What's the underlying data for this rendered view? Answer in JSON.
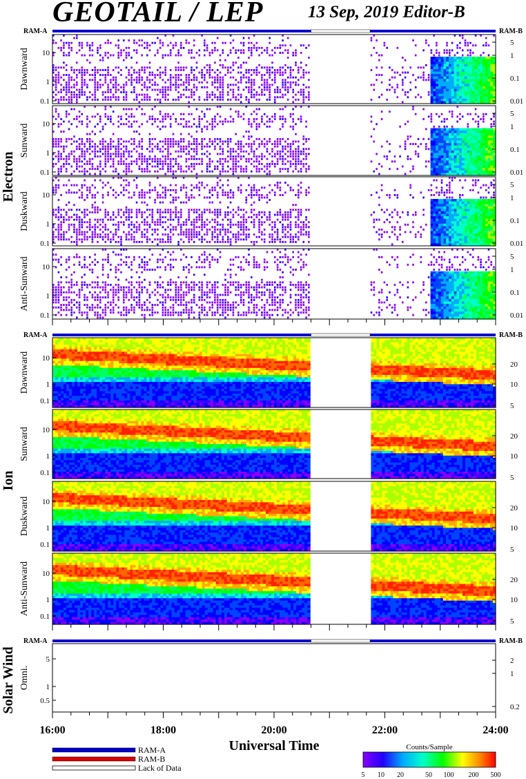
{
  "header": {
    "title": "GEOTAIL / LEP",
    "date_editor": "13 Sep, 2019   Editor-B"
  },
  "ram_labels": {
    "left": "RAM-A",
    "right": "RAM-B"
  },
  "chart_data": {
    "type": "heatmap",
    "xlabel": "Universal Time",
    "x_range": [
      "16:00",
      "24:00"
    ],
    "x_ticks": [
      "16:00",
      "18:00",
      "20:00",
      "22:00",
      "24:00"
    ],
    "data_gaps": [
      [
        "20:40",
        "21:44"
      ]
    ],
    "groups": [
      {
        "name": "Electron",
        "panels": [
          "Dawnward",
          "Sunward",
          "Duskward",
          "Anti-Sunward"
        ],
        "left_ticks": [
          "10",
          "1",
          "0.1"
        ],
        "right_ticks": [
          "5",
          "1",
          "0.1",
          "0.01"
        ],
        "ram_state": "RAM-A except lack of data 20:40–21:44"
      },
      {
        "name": "Ion",
        "panels": [
          "Dawnward",
          "Sunward",
          "Duskward",
          "Anti-Sunward"
        ],
        "left_ticks": [
          "10",
          "1",
          "0.1"
        ],
        "right_ticks": [
          "20",
          "10",
          "5"
        ],
        "ram_state": "RAM-A except lack of data 20:40–21:44"
      },
      {
        "name": "Solar Wind",
        "panels": [
          "Omni."
        ],
        "left_ticks": [
          "5",
          "1",
          "0.5"
        ],
        "right_ticks": [
          "2",
          "1",
          "0.2"
        ],
        "ram_state": "RAM-A except lack of data 20:40–21:44"
      }
    ],
    "legend": {
      "bars": [
        {
          "label": "RAM-A",
          "color": "#0000cc"
        },
        {
          "label": "RAM-B",
          "color": "#dd0000"
        },
        {
          "label": "Lack of Data",
          "color": "#ffffff"
        }
      ]
    },
    "colorbar": {
      "title": "Counts/Sample",
      "ticks": [
        "5",
        "10",
        "20",
        "50",
        "100",
        "200",
        "500"
      ],
      "colors": [
        "#8800ff",
        "#0000ff",
        "#00aaff",
        "#00ffcc",
        "#00ff00",
        "#ffff00",
        "#ff8800",
        "#ff0000"
      ]
    }
  }
}
